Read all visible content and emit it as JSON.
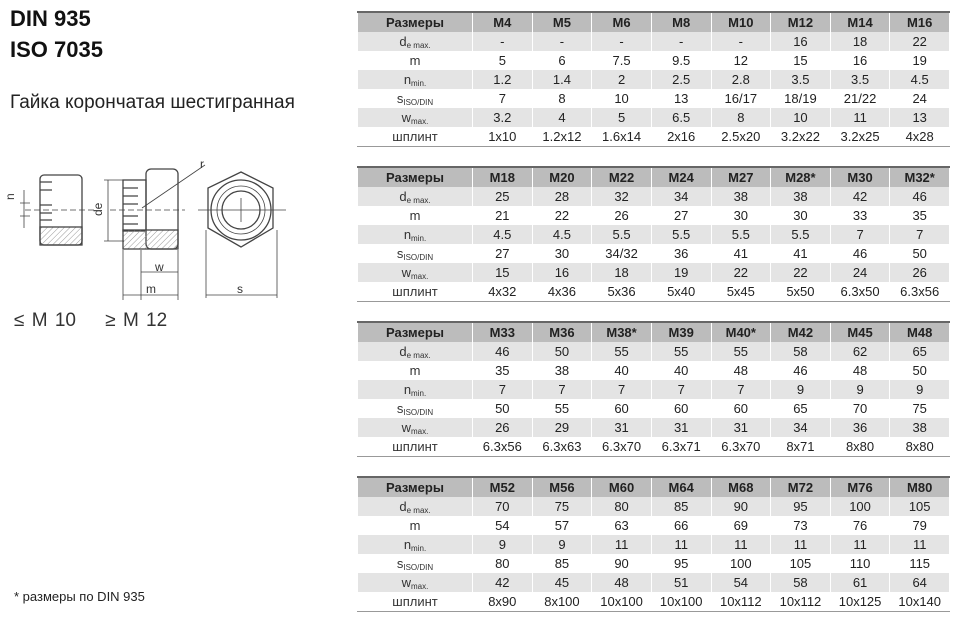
{
  "header": {
    "title1": "DIN 935",
    "title2": "ISO 7035",
    "subtitle": "Гайка корончатая шестигранная"
  },
  "drawing": {
    "le_label": "≤ M 10",
    "ge_label": "≥ M 12",
    "dim_n": "n",
    "dim_de": "de",
    "dim_r": "r",
    "dim_w": "w",
    "dim_m": "m",
    "dim_s": "s"
  },
  "footnote": "* размеры по DIN 935",
  "row_labels": [
    {
      "main": "d",
      "sub": "e max."
    },
    {
      "main": "m",
      "sub": ""
    },
    {
      "main": "n",
      "sub": "min."
    },
    {
      "main": "s",
      "sub": "ISO/DIN"
    },
    {
      "main": "w",
      "sub": "max."
    },
    {
      "main": "шплинт",
      "sub": ""
    }
  ],
  "header_label": "Размеры",
  "tables": [
    {
      "sizes": [
        "M4",
        "M5",
        "M6",
        "M8",
        "M10",
        "M12",
        "M14",
        "M16"
      ],
      "rows": [
        [
          "-",
          "-",
          "-",
          "-",
          "-",
          "16",
          "18",
          "22"
        ],
        [
          "5",
          "6",
          "7.5",
          "9.5",
          "12",
          "15",
          "16",
          "19"
        ],
        [
          "1.2",
          "1.4",
          "2",
          "2.5",
          "2.8",
          "3.5",
          "3.5",
          "4.5"
        ],
        [
          "7",
          "8",
          "10",
          "13",
          "16/17",
          "18/19",
          "21/22",
          "24"
        ],
        [
          "3.2",
          "4",
          "5",
          "6.5",
          "8",
          "10",
          "11",
          "13"
        ],
        [
          "1x10",
          "1.2x12",
          "1.6x14",
          "2x16",
          "2.5x20",
          "3.2x22",
          "3.2x25",
          "4x28"
        ]
      ]
    },
    {
      "sizes": [
        "M18",
        "M20",
        "M22",
        "M24",
        "M27",
        "M28*",
        "M30",
        "M32*"
      ],
      "rows": [
        [
          "25",
          "28",
          "32",
          "34",
          "38",
          "38",
          "42",
          "46"
        ],
        [
          "21",
          "22",
          "26",
          "27",
          "30",
          "30",
          "33",
          "35"
        ],
        [
          "4.5",
          "4.5",
          "5.5",
          "5.5",
          "5.5",
          "5.5",
          "7",
          "7"
        ],
        [
          "27",
          "30",
          "34/32",
          "36",
          "41",
          "41",
          "46",
          "50"
        ],
        [
          "15",
          "16",
          "18",
          "19",
          "22",
          "22",
          "24",
          "26"
        ],
        [
          "4x32",
          "4x36",
          "5x36",
          "5x40",
          "5x45",
          "5x50",
          "6.3x50",
          "6.3x56"
        ]
      ]
    },
    {
      "sizes": [
        "M33",
        "M36",
        "M38*",
        "M39",
        "M40*",
        "M42",
        "M45",
        "M48"
      ],
      "rows": [
        [
          "46",
          "50",
          "55",
          "55",
          "55",
          "58",
          "62",
          "65"
        ],
        [
          "35",
          "38",
          "40",
          "40",
          "48",
          "46",
          "48",
          "50"
        ],
        [
          "7",
          "7",
          "7",
          "7",
          "7",
          "9",
          "9",
          "9"
        ],
        [
          "50",
          "55",
          "60",
          "60",
          "60",
          "65",
          "70",
          "75"
        ],
        [
          "26",
          "29",
          "31",
          "31",
          "31",
          "34",
          "36",
          "38"
        ],
        [
          "6.3x56",
          "6.3x63",
          "6.3x70",
          "6.3x71",
          "6.3x70",
          "8x71",
          "8x80",
          "8x80"
        ]
      ]
    },
    {
      "sizes": [
        "M52",
        "M56",
        "M60",
        "M64",
        "M68",
        "M72",
        "M76",
        "M80"
      ],
      "rows": [
        [
          "70",
          "75",
          "80",
          "85",
          "90",
          "95",
          "100",
          "105"
        ],
        [
          "54",
          "57",
          "63",
          "66",
          "69",
          "73",
          "76",
          "79"
        ],
        [
          "9",
          "9",
          "11",
          "11",
          "11",
          "11",
          "11",
          "11"
        ],
        [
          "80",
          "85",
          "90",
          "95",
          "100",
          "105",
          "110",
          "115"
        ],
        [
          "42",
          "45",
          "48",
          "51",
          "54",
          "58",
          "61",
          "64"
        ],
        [
          "8x90",
          "8x100",
          "10x100",
          "10x100",
          "10x112",
          "10x112",
          "10x125",
          "10x140"
        ]
      ]
    }
  ]
}
